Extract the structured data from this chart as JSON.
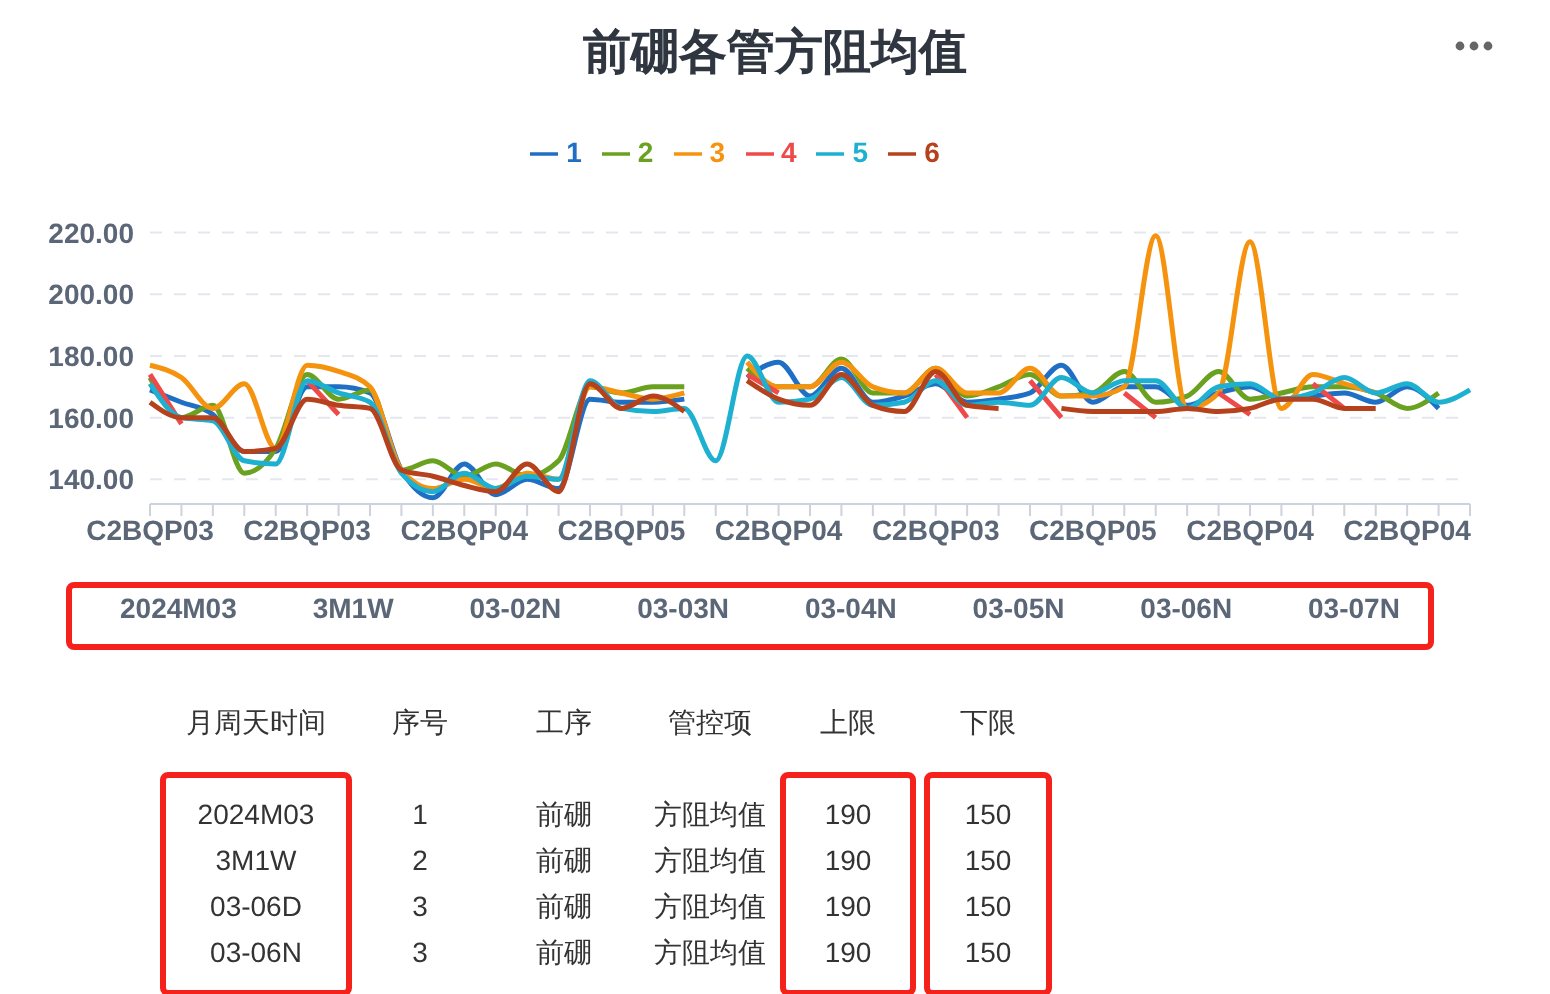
{
  "chart_data": [
    {
      "type": "line",
      "title": "前硼各管方阻均值",
      "legend": "top",
      "grid": "y",
      "marker": "none",
      "categories": [
        "C2BQP03",
        null,
        null,
        null,
        null,
        "C2BQP03",
        null,
        null,
        null,
        null,
        "C2BQP04",
        null,
        null,
        null,
        null,
        "C2BQP05",
        null,
        null,
        null,
        null,
        "C2BQP04",
        null,
        null,
        null,
        null,
        "C2BQP03",
        null,
        null,
        null,
        null,
        "C2BQP05",
        null,
        null,
        null,
        null,
        "C2BQP04",
        null,
        null,
        null,
        null,
        "C2BQP04",
        null,
        null
      ],
      "ylim": [
        132,
        220
      ],
      "yticks": [
        {
          "value": 140,
          "label": "140.00"
        },
        {
          "value": 160,
          "label": "160.00"
        },
        {
          "value": 180,
          "label": "180.00"
        },
        {
          "value": 200,
          "label": "200.00"
        },
        {
          "value": 220,
          "label": "220.00"
        }
      ],
      "annotations": [
        "2024M03",
        "3M1W",
        "03-02N",
        "03-03N",
        "03-04N",
        "03-05N",
        "03-06N",
        "03-07N"
      ],
      "series": [
        {
          "name": "1",
          "color": "#1f6fc5",
          "values": [
            169,
            165,
            161,
            149,
            149,
            170,
            170,
            168,
            143,
            134,
            145,
            135,
            140,
            137,
            166,
            165,
            165,
            166,
            null,
            173,
            178,
            167,
            176,
            165,
            167,
            171,
            165,
            166,
            168,
            177,
            165,
            170,
            170,
            164,
            168,
            170,
            166,
            167,
            168,
            165,
            170,
            163,
            null
          ]
        },
        {
          "name": "2",
          "color": "#6aa121",
          "values": [
            173,
            160,
            164,
            142,
            150,
            174,
            166,
            169,
            143,
            146,
            141,
            145,
            141,
            146,
            170,
            168,
            170,
            170,
            null,
            176,
            170,
            170,
            179,
            168,
            168,
            176,
            167,
            170,
            174,
            167,
            168,
            175,
            165,
            167,
            175,
            166,
            168,
            170,
            170,
            168,
            163,
            168,
            null
          ]
        },
        {
          "name": "3",
          "color": "#f5930f",
          "values": [
            177,
            173,
            163,
            171,
            150,
            177,
            175,
            170,
            143,
            137,
            140,
            137,
            142,
            140,
            170,
            168,
            166,
            168,
            null,
            178,
            170,
            170,
            178,
            170,
            168,
            176,
            168,
            168,
            176,
            167,
            167,
            170,
            219,
            163,
            168,
            217,
            163,
            174,
            171,
            168,
            null,
            null,
            null
          ]
        },
        {
          "name": "4",
          "color": "#ee4a4a",
          "values": [
            174,
            158,
            null,
            null,
            null,
            172,
            161,
            null,
            null,
            null,
            null,
            null,
            null,
            null,
            null,
            null,
            null,
            null,
            null,
            174,
            168,
            null,
            null,
            null,
            null,
            174,
            160,
            null,
            172,
            160,
            null,
            168,
            160,
            null,
            168,
            161,
            null,
            171,
            163,
            null,
            null,
            null,
            null
          ]
        },
        {
          "name": "5",
          "color": "#1eb0d0",
          "values": [
            171,
            160,
            159,
            146,
            145,
            172,
            168,
            165,
            142,
            136,
            142,
            137,
            141,
            140,
            172,
            163,
            162,
            163,
            146,
            180,
            165,
            166,
            173,
            164,
            165,
            172,
            164,
            165,
            164,
            173,
            168,
            172,
            172,
            163,
            170,
            171,
            166,
            168,
            173,
            168,
            171,
            165,
            169
          ]
        },
        {
          "name": "6",
          "color": "#b5421c",
          "values": [
            165,
            160,
            160,
            149,
            150,
            166,
            164,
            163,
            143,
            141,
            138,
            136,
            145,
            136,
            171,
            163,
            167,
            162,
            null,
            172,
            166,
            164,
            174,
            164,
            162,
            175,
            164,
            163,
            null,
            163,
            162,
            162,
            162,
            163,
            162,
            163,
            166,
            166,
            163,
            163,
            null,
            null,
            null
          ]
        }
      ]
    },
    {
      "type": "other",
      "annotations": [
        "月周天时间",
        "序号",
        "工序",
        "管控项",
        "上限",
        "下限",
        "2024M03",
        "1",
        "前硼",
        "方阻均值",
        "190",
        "150",
        "3M1W",
        "2",
        "前硼",
        "方阻均值",
        "190",
        "150",
        "03-06D",
        "3",
        "前硼",
        "方阻均值",
        "190",
        "150",
        "03-06N",
        "3",
        "前硼",
        "方阻均值",
        "190",
        "150"
      ]
    }
  ]
}
